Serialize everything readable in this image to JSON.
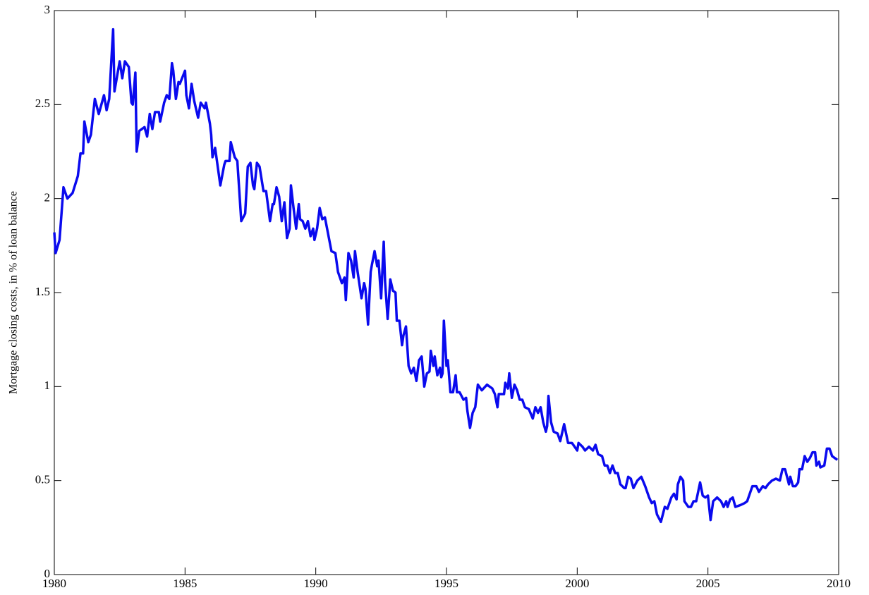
{
  "chart_data": {
    "type": "line",
    "ylabel": "Mortgage closing costs, in % of loan balance",
    "xlim": [
      1980,
      2010
    ],
    "xticks": [
      1980,
      1985,
      1990,
      1995,
      2000,
      2005,
      2010
    ],
    "ylim": [
      0,
      3
    ],
    "yticks": [
      0,
      0.5,
      1,
      1.5,
      2,
      2.5,
      3
    ],
    "grid": false,
    "x": [
      1980.0,
      1980.05,
      1980.2,
      1980.35,
      1980.5,
      1980.7,
      1980.9,
      1981.0,
      1981.1,
      1981.15,
      1981.3,
      1981.4,
      1981.55,
      1981.7,
      1981.9,
      1982.0,
      1982.1,
      1982.2,
      1982.25,
      1982.3,
      1982.5,
      1982.6,
      1982.7,
      1982.85,
      1982.95,
      1983.0,
      1983.1,
      1983.15,
      1983.25,
      1983.45,
      1983.55,
      1983.65,
      1983.75,
      1983.85,
      1984.0,
      1984.05,
      1984.2,
      1984.3,
      1984.4,
      1984.5,
      1984.55,
      1984.65,
      1984.75,
      1984.8,
      1985.0,
      1985.05,
      1985.15,
      1985.25,
      1985.35,
      1985.5,
      1985.6,
      1985.75,
      1985.8,
      1985.95,
      1986.0,
      1986.05,
      1986.15,
      1986.3,
      1986.35,
      1986.5,
      1986.55,
      1986.7,
      1986.75,
      1986.9,
      1987.0,
      1987.15,
      1987.3,
      1987.4,
      1987.5,
      1987.6,
      1987.65,
      1987.75,
      1987.85,
      1988.0,
      1988.1,
      1988.25,
      1988.35,
      1988.4,
      1988.5,
      1988.6,
      1988.7,
      1988.8,
      1988.9,
      1989.0,
      1989.05,
      1989.15,
      1989.25,
      1989.35,
      1989.4,
      1989.5,
      1989.6,
      1989.7,
      1989.8,
      1989.9,
      1989.95,
      1990.05,
      1990.15,
      1990.25,
      1990.35,
      1990.6,
      1990.75,
      1990.85,
      1991.0,
      1991.1,
      1991.15,
      1991.25,
      1991.35,
      1991.45,
      1991.5,
      1991.6,
      1991.75,
      1991.85,
      1991.9,
      1992.0,
      1992.1,
      1992.15,
      1992.25,
      1992.35,
      1992.4,
      1992.5,
      1992.6,
      1992.65,
      1992.75,
      1992.85,
      1992.95,
      1993.05,
      1993.1,
      1993.2,
      1993.3,
      1993.35,
      1993.45,
      1993.55,
      1993.65,
      1993.75,
      1993.85,
      1993.95,
      1994.05,
      1994.15,
      1994.25,
      1994.35,
      1994.4,
      1994.5,
      1994.55,
      1994.65,
      1994.75,
      1994.8,
      1994.85,
      1994.9,
      1995.0,
      1995.05,
      1995.15,
      1995.25,
      1995.35,
      1995.4,
      1995.5,
      1995.65,
      1995.75,
      1995.8,
      1995.9,
      1996.0,
      1996.1,
      1996.2,
      1996.35,
      1996.55,
      1996.75,
      1996.85,
      1996.95,
      1997.0,
      1997.2,
      1997.25,
      1997.35,
      1997.4,
      1997.5,
      1997.6,
      1997.7,
      1997.8,
      1997.9,
      1998.0,
      1998.15,
      1998.3,
      1998.4,
      1998.5,
      1998.6,
      1998.7,
      1998.8,
      1998.85,
      1998.9,
      1999.0,
      1999.1,
      1999.25,
      1999.35,
      1999.5,
      1999.65,
      1999.8,
      1999.9,
      2000.0,
      2000.05,
      2000.2,
      2000.3,
      2000.45,
      2000.6,
      2000.7,
      2000.8,
      2000.95,
      2001.05,
      2001.15,
      2001.25,
      2001.35,
      2001.45,
      2001.55,
      2001.65,
      2001.8,
      2001.85,
      2001.95,
      2002.05,
      2002.15,
      2002.3,
      2002.45,
      2002.6,
      2002.75,
      2002.85,
      2002.95,
      2003.05,
      2003.2,
      2003.35,
      2003.45,
      2003.6,
      2003.7,
      2003.8,
      2003.85,
      2003.95,
      2004.05,
      2004.1,
      2004.25,
      2004.35,
      2004.45,
      2004.55,
      2004.7,
      2004.8,
      2004.9,
      2005.0,
      2005.1,
      2005.2,
      2005.35,
      2005.5,
      2005.6,
      2005.7,
      2005.75,
      2005.85,
      2005.95,
      2006.05,
      2006.25,
      2006.4,
      2006.5,
      2006.6,
      2006.7,
      2006.85,
      2006.95,
      2007.1,
      2007.2,
      2007.3,
      2007.45,
      2007.6,
      2007.75,
      2007.85,
      2007.95,
      2008.1,
      2008.15,
      2008.25,
      2008.35,
      2008.45,
      2008.5,
      2008.6,
      2008.7,
      2008.8,
      2008.9,
      2009.0,
      2009.1,
      2009.15,
      2009.25,
      2009.3,
      2009.45,
      2009.55,
      2009.65,
      2009.75,
      2009.85,
      2009.95
    ],
    "series": [
      {
        "color": "#0a0aee",
        "values": [
          1.82,
          1.71,
          1.78,
          2.06,
          2.0,
          2.03,
          2.12,
          2.24,
          2.24,
          2.41,
          2.3,
          2.34,
          2.53,
          2.45,
          2.55,
          2.47,
          2.53,
          2.78,
          2.9,
          2.57,
          2.73,
          2.64,
          2.73,
          2.7,
          2.51,
          2.5,
          2.67,
          2.25,
          2.36,
          2.38,
          2.33,
          2.45,
          2.37,
          2.46,
          2.46,
          2.41,
          2.51,
          2.55,
          2.53,
          2.72,
          2.68,
          2.53,
          2.62,
          2.61,
          2.68,
          2.55,
          2.48,
          2.61,
          2.52,
          2.43,
          2.51,
          2.48,
          2.51,
          2.4,
          2.34,
          2.22,
          2.27,
          2.12,
          2.07,
          2.18,
          2.2,
          2.2,
          2.3,
          2.22,
          2.2,
          1.88,
          1.92,
          2.17,
          2.19,
          2.07,
          2.05,
          2.19,
          2.17,
          2.04,
          2.04,
          1.88,
          1.97,
          1.97,
          2.06,
          2.01,
          1.88,
          1.98,
          1.79,
          1.84,
          2.07,
          1.95,
          1.84,
          1.97,
          1.89,
          1.88,
          1.84,
          1.88,
          1.8,
          1.84,
          1.78,
          1.84,
          1.95,
          1.89,
          1.9,
          1.72,
          1.71,
          1.61,
          1.55,
          1.58,
          1.46,
          1.71,
          1.67,
          1.58,
          1.72,
          1.61,
          1.47,
          1.55,
          1.52,
          1.33,
          1.61,
          1.65,
          1.72,
          1.64,
          1.67,
          1.47,
          1.77,
          1.56,
          1.36,
          1.57,
          1.51,
          1.5,
          1.35,
          1.35,
          1.22,
          1.27,
          1.32,
          1.11,
          1.07,
          1.1,
          1.03,
          1.14,
          1.16,
          1.0,
          1.07,
          1.08,
          1.19,
          1.11,
          1.16,
          1.06,
          1.1,
          1.05,
          1.07,
          1.35,
          1.11,
          1.14,
          0.97,
          0.97,
          1.06,
          0.97,
          0.97,
          0.93,
          0.94,
          0.87,
          0.78,
          0.86,
          0.89,
          1.01,
          0.98,
          1.01,
          0.99,
          0.96,
          0.89,
          0.96,
          0.96,
          1.02,
          0.99,
          1.07,
          0.94,
          1.01,
          0.98,
          0.93,
          0.93,
          0.89,
          0.88,
          0.83,
          0.89,
          0.86,
          0.89,
          0.81,
          0.76,
          0.79,
          0.95,
          0.81,
          0.76,
          0.75,
          0.71,
          0.8,
          0.7,
          0.7,
          0.68,
          0.66,
          0.7,
          0.68,
          0.66,
          0.68,
          0.66,
          0.69,
          0.64,
          0.63,
          0.58,
          0.58,
          0.54,
          0.58,
          0.54,
          0.54,
          0.48,
          0.46,
          0.46,
          0.52,
          0.51,
          0.46,
          0.5,
          0.52,
          0.47,
          0.41,
          0.38,
          0.39,
          0.32,
          0.28,
          0.36,
          0.35,
          0.41,
          0.43,
          0.4,
          0.48,
          0.52,
          0.5,
          0.39,
          0.36,
          0.36,
          0.39,
          0.39,
          0.49,
          0.42,
          0.41,
          0.42,
          0.29,
          0.39,
          0.41,
          0.39,
          0.36,
          0.39,
          0.36,
          0.4,
          0.41,
          0.36,
          0.37,
          0.38,
          0.39,
          0.43,
          0.47,
          0.47,
          0.44,
          0.47,
          0.46,
          0.48,
          0.5,
          0.51,
          0.5,
          0.56,
          0.56,
          0.48,
          0.52,
          0.47,
          0.47,
          0.49,
          0.56,
          0.56,
          0.63,
          0.6,
          0.62,
          0.65,
          0.65,
          0.58,
          0.6,
          0.57,
          0.58,
          0.67,
          0.67,
          0.63,
          0.62,
          0.61
        ]
      }
    ]
  }
}
